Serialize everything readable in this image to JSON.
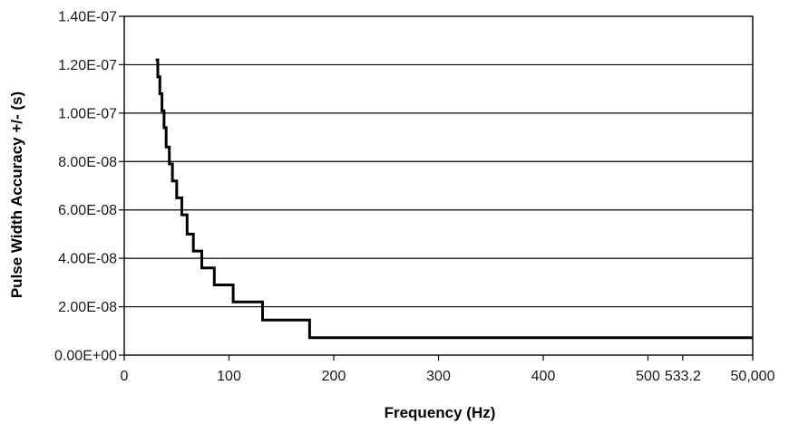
{
  "chart_data": {
    "type": "line",
    "title": "",
    "xlabel": "Frequency (Hz)",
    "ylabel": "Pulse Width Accuracy +/- (s)",
    "grid": "horizontal",
    "legend": "none",
    "line_color": "#000000",
    "grid_color": "#000000",
    "y_ticks": [
      "0.00E+00",
      "2.00E-08",
      "4.00E-08",
      "6.00E-08",
      "8.00E-08",
      "1.00E-07",
      "1.20E-07",
      "1.40E-07"
    ],
    "y_tick_values": [
      0,
      2e-08,
      4e-08,
      6e-08,
      8e-08,
      1e-07,
      1.2e-07,
      1.4e-07
    ],
    "ylim": [
      0,
      1.4e-07
    ],
    "x_ticks": [
      "0",
      "100",
      "200",
      "300",
      "400",
      "500",
      "533.2",
      "50,000"
    ],
    "x_tick_values": [
      0,
      100,
      200,
      300,
      400,
      500,
      533.2,
      600
    ],
    "xlim": [
      0,
      600
    ],
    "series": [
      {
        "x": [
          30,
          32,
          32,
          34,
          34,
          36,
          36,
          38,
          38,
          40,
          40,
          43,
          43,
          46,
          46,
          50,
          50,
          55,
          55,
          60,
          60,
          66,
          66,
          74,
          74,
          86,
          86,
          104,
          104,
          132,
          132,
          177,
          177,
          266,
          266,
          533.2,
          533.2,
          600
        ],
        "y": [
          1.22e-07,
          1.22e-07,
          1.15e-07,
          1.15e-07,
          1.08e-07,
          1.08e-07,
          1.01e-07,
          1.01e-07,
          9.4e-08,
          9.4e-08,
          8.6e-08,
          8.6e-08,
          7.9e-08,
          7.9e-08,
          7.2e-08,
          7.2e-08,
          6.5e-08,
          6.5e-08,
          5.8e-08,
          5.8e-08,
          5e-08,
          5e-08,
          4.3e-08,
          4.3e-08,
          3.6e-08,
          3.6e-08,
          2.9e-08,
          2.9e-08,
          2.2e-08,
          2.2e-08,
          1.45e-08,
          1.45e-08,
          7.2e-09,
          7.2e-09,
          7.2e-09,
          7.2e-09,
          7.2e-09,
          7.2e-09
        ]
      }
    ]
  }
}
